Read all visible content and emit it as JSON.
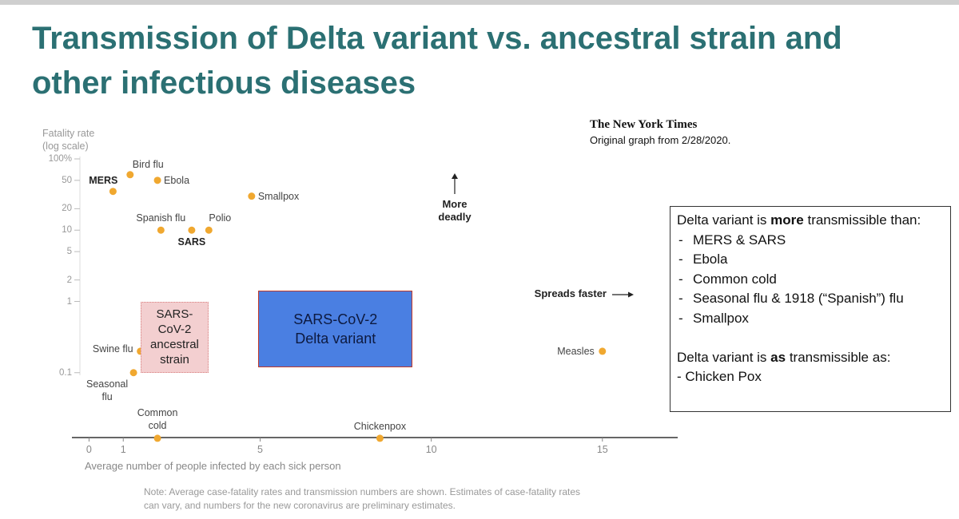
{
  "title": "Transmission of Delta variant vs. ancestral strain and other infectious diseases",
  "source": {
    "logo": "The New York Times",
    "note": "Original graph from 2/28/2020."
  },
  "chart_data": {
    "type": "scatter",
    "y_label": [
      "Fatality rate",
      "(log scale)"
    ],
    "x_label": "Average number of people infected by each sick person",
    "log_y": true,
    "grid": false,
    "color": "#f0a830",
    "xlim": [
      -0.5,
      17.2
    ],
    "xticks": [
      0,
      1,
      5,
      10,
      15
    ],
    "ylim": [
      0.01,
      100
    ],
    "yticks": [
      {
        "value": 100,
        "label": "100%"
      },
      50,
      20,
      10,
      5,
      2,
      1,
      0.1
    ],
    "labels": [
      "MERS",
      "Bird flu",
      "Ebola",
      "Smallpox",
      "Spanish flu",
      "SARS",
      "Polio",
      "Swine flu",
      "Seasonal\nflu",
      "Common\ncold",
      "Chickenpox",
      "Measles"
    ],
    "x": [
      0.7,
      1.2,
      2.0,
      4.75,
      2.1,
      3.0,
      3.5,
      1.5,
      1.3,
      2.0,
      8.5,
      15
    ],
    "values": [
      35,
      60,
      50,
      30,
      10,
      10,
      10,
      0.2,
      0.1,
      0.012,
      0.012,
      0.2
    ],
    "annotations": [
      "More\ndeadly",
      "Spreads faster"
    ],
    "regions": [
      {
        "label": "SARS-\nCoV-2\nancestral\nstrain",
        "x": [
          1.5,
          3.5
        ],
        "y": [
          0.1,
          1
        ],
        "color": "#f3cfd0"
      },
      {
        "label": "SARS-CoV-2\nDelta variant",
        "x": [
          4.95,
          9.45
        ],
        "y": [
          0.12,
          1.4
        ],
        "color": "#4a7fe2"
      }
    ],
    "note": "Note: Average case-fatality rates and transmission numbers are shown. Estimates of case-fatality rates can vary, and numbers for the new coronavirus are preliminary estimates."
  },
  "callout": {
    "intro": [
      "Delta variant is ",
      "more",
      " transmissible than:"
    ],
    "list": [
      "MERS & SARS",
      "Ebola",
      "Common cold",
      "Seasonal flu & 1918 (“Spanish”) flu",
      "Smallpox"
    ],
    "outro": [
      "Delta variant is ",
      "as",
      " transmissible as:"
    ],
    "extra": "- Chicken Pox"
  }
}
